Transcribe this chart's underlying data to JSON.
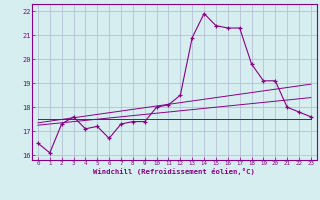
{
  "x": [
    0,
    1,
    2,
    3,
    4,
    5,
    6,
    7,
    8,
    9,
    10,
    11,
    12,
    13,
    14,
    15,
    16,
    17,
    18,
    19,
    20,
    21,
    22,
    23
  ],
  "y_main": [
    16.5,
    16.1,
    17.3,
    17.6,
    17.1,
    17.2,
    16.7,
    17.3,
    17.4,
    17.4,
    18.0,
    18.1,
    18.5,
    20.9,
    21.9,
    21.4,
    21.3,
    21.3,
    19.8,
    19.1,
    19.1,
    18.0,
    17.8,
    17.6
  ],
  "y_trend1": [
    17.35,
    17.42,
    17.49,
    17.56,
    17.63,
    17.7,
    17.77,
    17.84,
    17.91,
    17.98,
    18.05,
    18.12,
    18.19,
    18.26,
    18.33,
    18.4,
    18.47,
    18.54,
    18.61,
    18.68,
    18.75,
    18.82,
    18.89,
    18.96
  ],
  "y_trend2": [
    17.25,
    17.3,
    17.35,
    17.4,
    17.45,
    17.5,
    17.55,
    17.6,
    17.65,
    17.7,
    17.75,
    17.8,
    17.85,
    17.9,
    17.95,
    18.0,
    18.05,
    18.1,
    18.15,
    18.2,
    18.25,
    18.3,
    18.35,
    18.4
  ],
  "y_flat": [
    17.5,
    17.5,
    17.5,
    17.5,
    17.5,
    17.5,
    17.5,
    17.5,
    17.5,
    17.5,
    17.5,
    17.5,
    17.5,
    17.5,
    17.5,
    17.5,
    17.5,
    17.5,
    17.5,
    17.5,
    17.5,
    17.5,
    17.5,
    17.5
  ],
  "line_color": "#880088",
  "bg_color": "#d6eef0",
  "grid_color": "#b0b8d0",
  "xlabel": "Windchill (Refroidissement éolien,°C)",
  "xlim": [
    -0.5,
    23.5
  ],
  "ylim": [
    15.8,
    22.3
  ],
  "yticks": [
    16,
    17,
    18,
    19,
    20,
    21,
    22
  ],
  "xticks": [
    0,
    1,
    2,
    3,
    4,
    5,
    6,
    7,
    8,
    9,
    10,
    11,
    12,
    13,
    14,
    15,
    16,
    17,
    18,
    19,
    20,
    21,
    22,
    23
  ]
}
